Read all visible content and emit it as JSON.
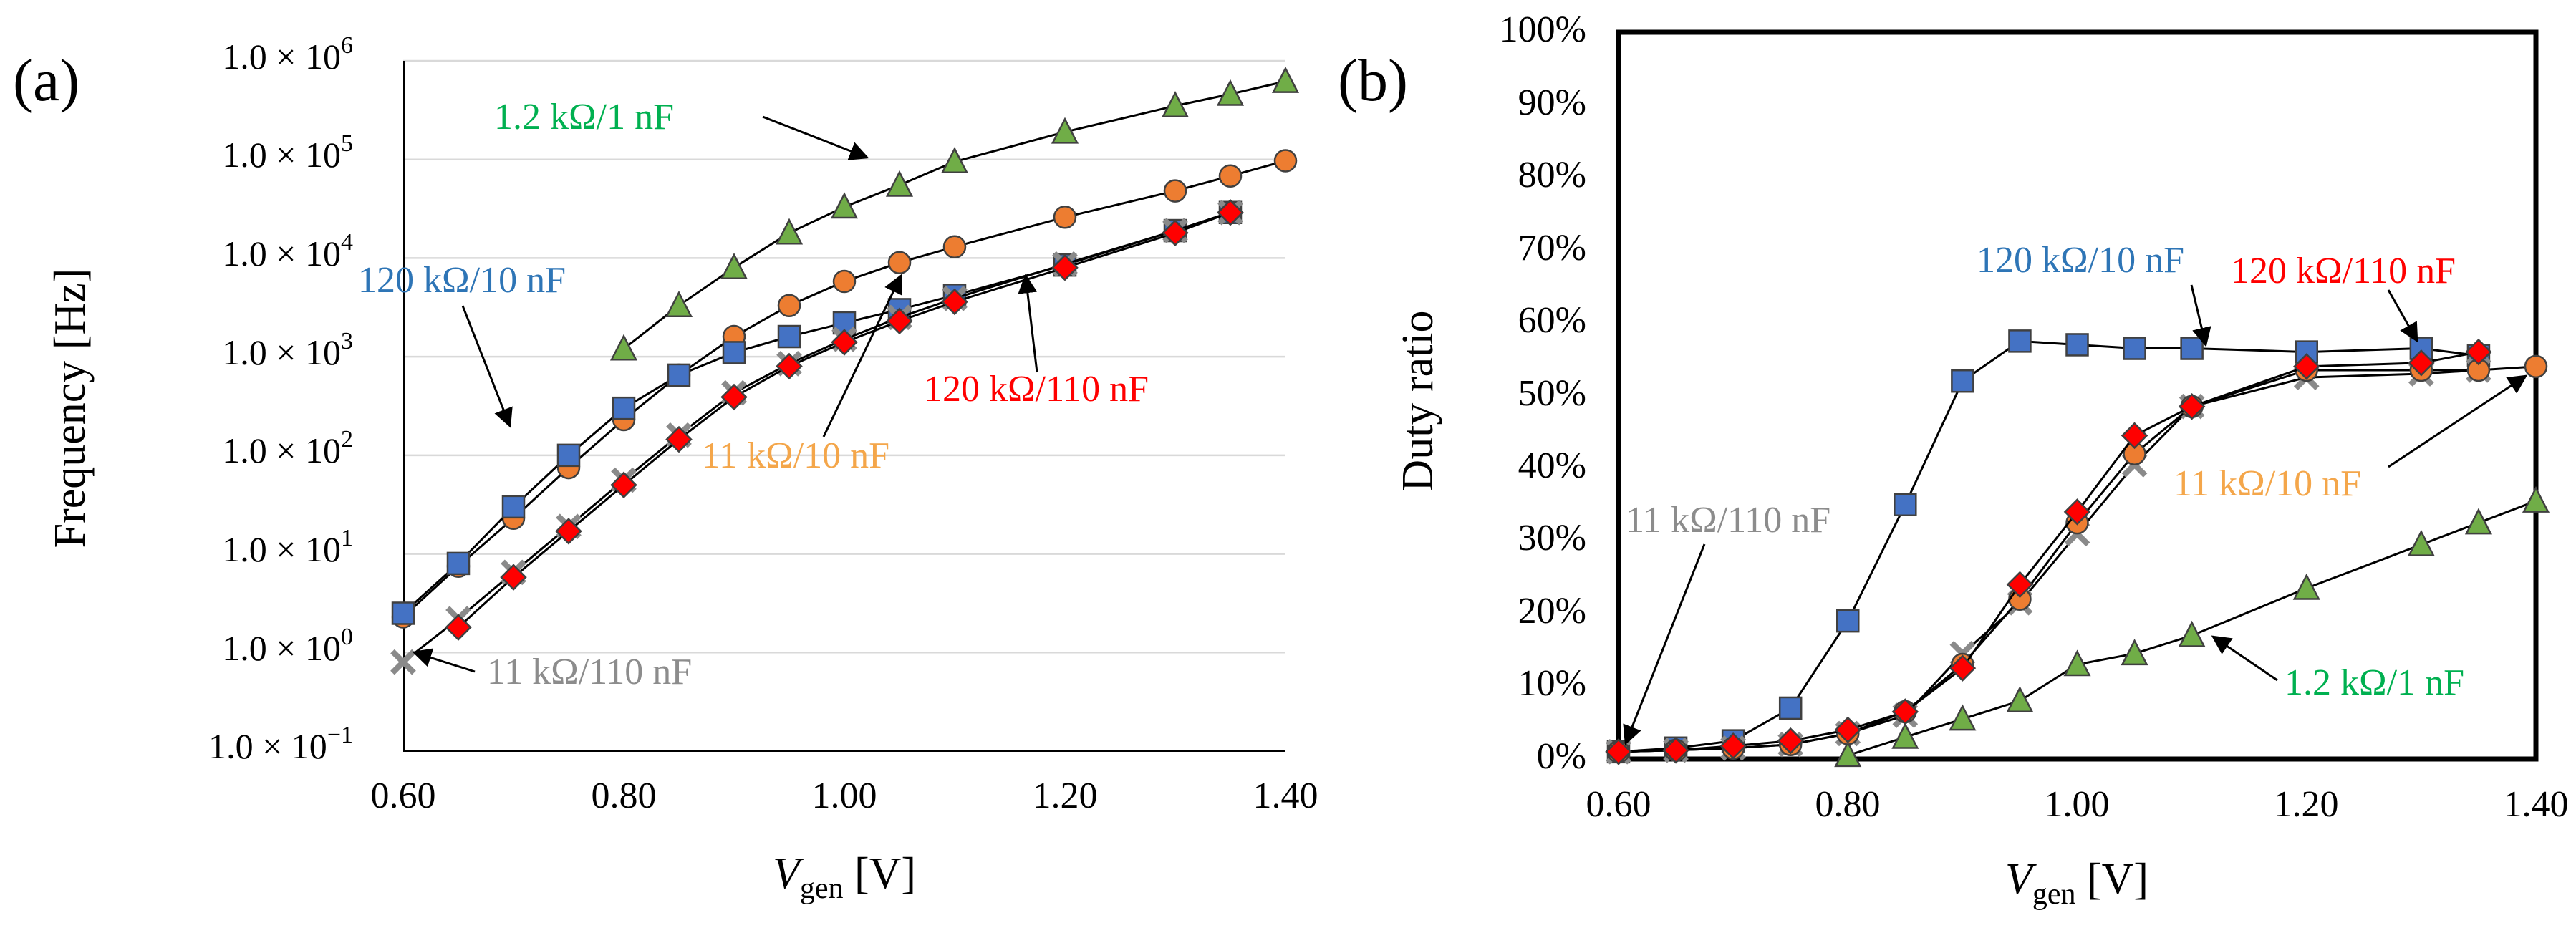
{
  "chart_data": [
    {
      "type": "line",
      "panel_label": "(a)",
      "ylabel": "Frequency [Hz]",
      "xlabel": {
        "main": "V",
        "sub": "gen",
        "unit": " [V]"
      },
      "xlim": [
        0.6,
        1.4
      ],
      "ylim_log10": [
        -1,
        6
      ],
      "x_tick_labels": [
        "0.60",
        "0.80",
        "1.00",
        "1.20",
        "1.40"
      ],
      "y_tick_labels": [
        {
          "base": "1.0 × 10",
          "exp": "−1"
        },
        {
          "base": "1.0 × 10",
          "exp": "0"
        },
        {
          "base": "1.0 × 10",
          "exp": "1"
        },
        {
          "base": "1.0 × 10",
          "exp": "2"
        },
        {
          "base": "1.0 × 10",
          "exp": "3"
        },
        {
          "base": "1.0 × 10",
          "exp": "4"
        },
        {
          "base": "1.0 × 10",
          "exp": "5"
        },
        {
          "base": "1.0 × 10",
          "exp": "6"
        }
      ],
      "grid": "horizontal",
      "series": [
        {
          "name": "1.2 kΩ/1 nF",
          "marker": "triangle",
          "color": "#70AD47",
          "x": [
            0.8,
            0.85,
            0.9,
            0.95,
            1.0,
            1.05,
            1.1,
            1.2,
            1.3,
            1.35,
            1.4
          ],
          "y": [
            1200,
            3300,
            8000,
            18000,
            33000,
            55000,
            95000,
            190000,
            350000,
            460000,
            620000
          ]
        },
        {
          "name": "11 kΩ/10 nF",
          "marker": "circle",
          "color": "#ED7D31",
          "x": [
            0.6,
            0.65,
            0.7,
            0.75,
            0.8,
            0.85,
            0.9,
            0.95,
            1.0,
            1.05,
            1.1,
            1.2,
            1.3,
            1.35,
            1.4
          ],
          "y": [
            2.3,
            7.5,
            23,
            75,
            230,
            650,
            1600,
            3300,
            5800,
            9000,
            13000,
            26000,
            48000,
            68000,
            97000
          ]
        },
        {
          "name": "120 kΩ/10 nF",
          "marker": "square",
          "color": "#4472C4",
          "x": [
            0.6,
            0.65,
            0.7,
            0.75,
            0.8,
            0.85,
            0.9,
            0.95,
            1.0,
            1.05,
            1.1,
            1.2,
            1.3,
            1.35
          ],
          "y": [
            2.5,
            8,
            30,
            100,
            300,
            650,
            1100,
            1600,
            2200,
            3000,
            4200,
            8500,
            19000,
            29000
          ]
        },
        {
          "name": "11 kΩ/110 nF",
          "marker": "cross",
          "color": "#A5A5A5",
          "x": [
            0.6,
            0.65,
            0.7,
            0.75,
            0.8,
            0.85,
            0.9,
            0.95,
            1.0,
            1.05,
            1.1,
            1.2,
            1.3,
            1.35
          ],
          "y": [
            0.8,
            2.2,
            6.5,
            19,
            56,
            160,
            430,
            850,
            1500,
            2500,
            3900,
            8700,
            19000,
            29000
          ]
        },
        {
          "name": "120 kΩ/110 nF",
          "marker": "diamond",
          "color": "#FF0000",
          "x": [
            0.65,
            0.7,
            0.75,
            0.8,
            0.85,
            0.9,
            0.95,
            1.0,
            1.05,
            1.1,
            1.2,
            1.3,
            1.35
          ],
          "y": [
            1.8,
            5.8,
            17,
            50,
            145,
            390,
            800,
            1400,
            2300,
            3600,
            8000,
            18000,
            29000
          ]
        }
      ],
      "annotations": [
        {
          "text": "1.2 kΩ/1 nF",
          "color": "#00B050"
        },
        {
          "text": "120 kΩ/10 nF",
          "color": "#2E75B6"
        },
        {
          "text": "11 kΩ/10 nF",
          "color": "#F4A64A"
        },
        {
          "text": "120 kΩ/110 nF",
          "color": "#FF0000"
        },
        {
          "text": "11 kΩ/110 nF",
          "color": "#8C8C8C"
        }
      ]
    },
    {
      "type": "line",
      "panel_label": "(b)",
      "ylabel": "Duty ratio",
      "xlabel": {
        "main": "V",
        "sub": "gen",
        "unit": " [V]"
      },
      "xlim": [
        0.6,
        1.4
      ],
      "ylim": [
        0,
        100
      ],
      "x_tick_labels": [
        "0.60",
        "0.80",
        "1.00",
        "1.20",
        "1.40"
      ],
      "y_tick_labels": [
        "0%",
        "10%",
        "20%",
        "30%",
        "40%",
        "50%",
        "60%",
        "70%",
        "80%",
        "90%",
        "100%"
      ],
      "grid": "none",
      "series": [
        {
          "name": "1.2 kΩ/1 nF",
          "marker": "triangle",
          "color": "#70AD47",
          "x": [
            0.8,
            0.85,
            0.9,
            0.95,
            1.0,
            1.05,
            1.1,
            1.2,
            1.3,
            1.35,
            1.4
          ],
          "y": [
            0.5,
            3,
            5.5,
            8,
            13,
            14.5,
            17,
            23.5,
            29.5,
            32.5,
            35.5
          ]
        },
        {
          "name": "120 kΩ/10 nF",
          "marker": "square",
          "color": "#4472C4",
          "x": [
            0.6,
            0.65,
            0.7,
            0.75,
            0.8,
            0.85,
            0.9,
            0.95,
            1.0,
            1.05,
            1.1,
            1.2,
            1.3,
            1.35
          ],
          "y": [
            1,
            1.5,
            2.5,
            7,
            19,
            35,
            52,
            57.5,
            57,
            56.5,
            56.5,
            56,
            56.5,
            55.5
          ]
        },
        {
          "name": "11 kΩ/110 nF",
          "marker": "cross",
          "color": "#A5A5A5",
          "x": [
            0.6,
            0.65,
            0.7,
            0.75,
            0.8,
            0.85,
            0.9,
            0.95,
            1.0,
            1.05,
            1.1,
            1.2,
            1.3,
            1.35
          ],
          "y": [
            1,
            1.2,
            1.5,
            2,
            3.5,
            6,
            14.5,
            21.5,
            31,
            40.5,
            48.5,
            52.5,
            53,
            53.5
          ]
        },
        {
          "name": "11 kΩ/10 nF",
          "marker": "circle",
          "color": "#ED7D31",
          "x": [
            0.6,
            0.65,
            0.7,
            0.75,
            0.8,
            0.85,
            0.9,
            0.95,
            1.0,
            1.05,
            1.1,
            1.2,
            1.3,
            1.35,
            1.4
          ],
          "y": [
            1,
            1.2,
            1.5,
            2,
            3.5,
            6.5,
            13,
            22,
            32.5,
            42,
            48.5,
            53.5,
            53.5,
            53.5,
            54
          ]
        },
        {
          "name": "120 kΩ/110 nF",
          "marker": "diamond",
          "color": "#FF0000",
          "x": [
            0.6,
            0.65,
            0.7,
            0.75,
            0.8,
            0.85,
            0.9,
            0.95,
            1.0,
            1.05,
            1.1,
            1.2,
            1.3,
            1.35
          ],
          "y": [
            1,
            1.2,
            1.8,
            2.5,
            4,
            6.5,
            12.5,
            24,
            34,
            44.5,
            48.5,
            54,
            54.5,
            56
          ]
        }
      ],
      "annotations": [
        {
          "text": "120 kΩ/10 nF",
          "color": "#2E75B6"
        },
        {
          "text": "120 kΩ/110 nF",
          "color": "#FF0000"
        },
        {
          "text": "11 kΩ/10 nF",
          "color": "#F4A64A"
        },
        {
          "text": "11 kΩ/110 nF",
          "color": "#8C8C8C"
        },
        {
          "text": "1.2 kΩ/1 nF",
          "color": "#00B050"
        }
      ]
    }
  ]
}
